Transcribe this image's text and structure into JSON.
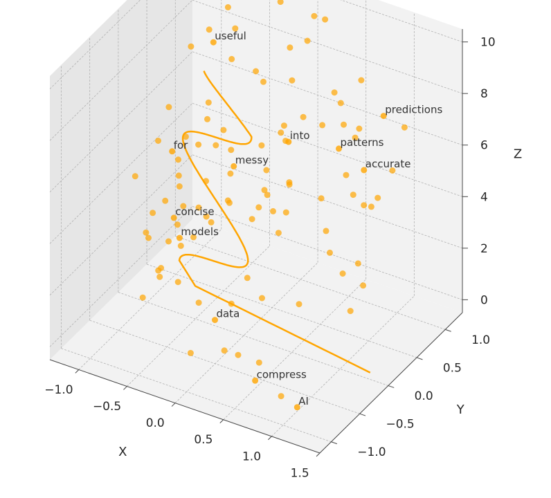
{
  "chart_data": {
    "type": "scatter",
    "projection": "3d",
    "grid": true,
    "colors": {
      "series": "#ffa500",
      "pane": "#f2f2f2",
      "pane_dark": "#e6e6e6",
      "grid": "#b0b0b0",
      "text": "#262626"
    },
    "axes": {
      "x": {
        "label": "X",
        "range": [
          -1.3,
          1.5
        ],
        "ticks": [
          -1.0,
          -0.5,
          0.0,
          0.5,
          1.0,
          1.5
        ],
        "tick_labels": [
          "−1.0",
          "−0.5",
          "0.0",
          "0.5",
          "1.0",
          "1.5"
        ]
      },
      "y": {
        "label": "Y",
        "range": [
          -1.2,
          1.3
        ],
        "ticks": [
          -1.0,
          -0.5,
          0.0,
          0.5,
          1.0
        ],
        "tick_labels": [
          "−1.0",
          "−0.5",
          "0.0",
          "0.5",
          "1.0"
        ]
      },
      "z": {
        "label": "Z",
        "range": [
          -0.5,
          10.5
        ],
        "ticks": [
          0,
          2,
          4,
          6,
          8,
          10
        ],
        "tick_labels": [
          "0",
          "2",
          "4",
          "6",
          "8",
          "10"
        ]
      }
    },
    "scatter_points": [
      [
        -1.11,
        0.56,
        0.5
      ],
      [
        -0.81,
        0.21,
        2.3
      ],
      [
        -0.65,
        0.53,
        1.9
      ],
      [
        -0.64,
        -0.39,
        1.8
      ],
      [
        -0.3,
        -0.28,
        1.0
      ],
      [
        0.25,
        -0.76,
        0.9
      ],
      [
        0.41,
        -0.79,
        1.0
      ],
      [
        0.98,
        -1.0,
        0.6
      ],
      [
        0.39,
        0.72,
        6.6
      ],
      [
        0.31,
        0.22,
        4.2
      ],
      [
        0.04,
        0.08,
        3.9
      ],
      [
        -0.47,
        0.52,
        3.0
      ],
      [
        0.12,
        0.61,
        9.5
      ],
      [
        -0.18,
        0.57,
        3.0
      ],
      [
        0.47,
        0.96,
        6.2
      ],
      [
        0.65,
        1.01,
        3.2
      ],
      [
        1.14,
        0.08,
        3.6
      ],
      [
        0.09,
        0.17,
        0.7
      ],
      [
        -0.65,
        0.22,
        2.0
      ],
      [
        -0.44,
        1.09,
        6.4
      ],
      [
        -0.11,
        0.84,
        5.4
      ],
      [
        0.44,
        0.96,
        7.0
      ],
      [
        0.34,
        -0.79,
        2.9
      ],
      [
        0.03,
        -0.98,
        1.0
      ],
      [
        -0.81,
        0.71,
        2.9
      ],
      [
        -0.06,
        1.22,
        8.2
      ],
      [
        -0.31,
        -0.13,
        4.0
      ],
      [
        -0.57,
        0.17,
        5.8
      ],
      [
        0.94,
        1.02,
        4.9
      ],
      [
        0.32,
        0.43,
        0.2
      ],
      [
        0.88,
        0.25,
        2.5
      ],
      [
        0.54,
        -0.11,
        6.3
      ],
      [
        -1.11,
        0.73,
        3.3
      ],
      [
        -0.25,
        0.07,
        7.0
      ],
      [
        0.1,
        0.54,
        6.6
      ],
      [
        -0.17,
        -0.2,
        7.1
      ],
      [
        -0.62,
        0.26,
        3.1
      ],
      [
        -0.02,
        0.55,
        3.1
      ],
      [
        -0.58,
        0.76,
        4.3
      ],
      [
        -0.76,
        0.67,
        6.1
      ],
      [
        -0.08,
        0.2,
        1.2
      ],
      [
        1.21,
        0.05,
        2.9
      ],
      [
        -0.84,
        0.32,
        1.2
      ],
      [
        1.32,
        0.59,
        8.0
      ],
      [
        -0.31,
        1.17,
        9.5
      ],
      [
        0.56,
        0.85,
        4.6
      ],
      [
        -0.36,
        0.36,
        3.4
      ],
      [
        0.16,
        0.53,
        4.5
      ],
      [
        -0.4,
        0.89,
        7.3
      ],
      [
        0.9,
        -0.01,
        3.9
      ],
      [
        0.61,
        -0.76,
        0.9
      ],
      [
        -0.73,
        -0.36,
        4.1
      ],
      [
        -0.24,
        0.72,
        5.0
      ],
      [
        0.21,
        0.06,
        5.1
      ],
      [
        0.08,
        0.91,
        6.1
      ],
      [
        -0.48,
        0.58,
        3.9
      ],
      [
        0.04,
        1.17,
        9.4
      ],
      [
        -0.99,
        0.75,
        7.8
      ],
      [
        0.07,
        0.73,
        7.9
      ],
      [
        0.05,
        0.28,
        4.6
      ],
      [
        -1.05,
        0.4,
        2.5
      ],
      [
        0.6,
        0.43,
        3.4
      ],
      [
        1.19,
        -0.14,
        2.3
      ],
      [
        -1.07,
        0.14,
        1.6
      ],
      [
        -0.47,
        -0.33,
        5.4
      ],
      [
        -0.91,
        -0.23,
        0.3
      ],
      [
        -0.59,
        0.85,
        8.8
      ],
      [
        -0.73,
        0.96,
        9.2
      ],
      [
        -1.07,
        0.31,
        5.0
      ],
      [
        -1.19,
        0.7,
        5.3
      ],
      [
        0.11,
        0.55,
        6.0
      ],
      [
        -0.93,
        -0.14,
        2.6
      ],
      [
        0.9,
        0.83,
        4.2
      ],
      [
        0.09,
        0.46,
        2.6
      ],
      [
        0.45,
        0.6,
        4.1
      ],
      [
        -0.94,
        0.14,
        0.6
      ],
      [
        0.17,
        1.14,
        9.5
      ],
      [
        -0.68,
        0.0,
        0.7
      ],
      [
        -0.66,
        -0.38,
        2.0
      ],
      [
        -0.82,
        0.25,
        4.1
      ],
      [
        0.61,
        0.56,
        8.5
      ],
      [
        0.94,
        0.65,
        4.3
      ],
      [
        -1.01,
        0.65,
        1.8
      ],
      [
        0.66,
        0.91,
        6.4
      ],
      [
        -0.7,
        0.58,
        9.2
      ],
      [
        -0.03,
        0.45,
        4.9
      ],
      [
        0.66,
        0.84,
        6.2
      ],
      [
        -1.03,
        -0.16,
        4.7
      ],
      [
        -0.99,
        0.66,
        4.5
      ],
      [
        1.19,
        -0.09,
        6.7
      ],
      [
        0.54,
        1.15,
        7.6
      ],
      [
        -0.72,
        0.58,
        5.7
      ],
      [
        -0.68,
        0.94,
        7.3
      ]
    ],
    "curve_endpoints": {
      "start": [
        1.36,
        -0.08,
        0.0
      ],
      "end": [
        -0.66,
        0.42,
        8.0
      ]
    },
    "annotations": [
      {
        "text": "AI",
        "x": 1.07,
        "y": -0.87,
        "z": 0.0
      },
      {
        "text": "compress",
        "x": 0.64,
        "y": -0.88,
        "z": 0.5
      },
      {
        "text": "data",
        "x": 0.14,
        "y": -0.74,
        "z": 1.9
      },
      {
        "text": "models",
        "x": -0.57,
        "y": -0.16,
        "z": 2.9
      },
      {
        "text": "concise",
        "x": -0.67,
        "y": -0.09,
        "z": 3.4
      },
      {
        "text": "messy",
        "x": -0.25,
        "y": 0.25,
        "z": 5.2
      },
      {
        "text": "for",
        "x": -0.96,
        "y": 0.37,
        "z": 4.6
      },
      {
        "text": "into",
        "x": 0.14,
        "y": 0.55,
        "z": 6.0
      },
      {
        "text": "patterns",
        "x": 0.68,
        "y": 0.52,
        "z": 6.5
      },
      {
        "text": "accurate",
        "x": 1.1,
        "y": 0.25,
        "z": 6.8
      },
      {
        "text": "predictions",
        "x": 1.05,
        "y": 0.68,
        "z": 7.9
      },
      {
        "text": "useful",
        "x": -0.71,
        "y": 0.67,
        "z": 8.5
      }
    ]
  }
}
